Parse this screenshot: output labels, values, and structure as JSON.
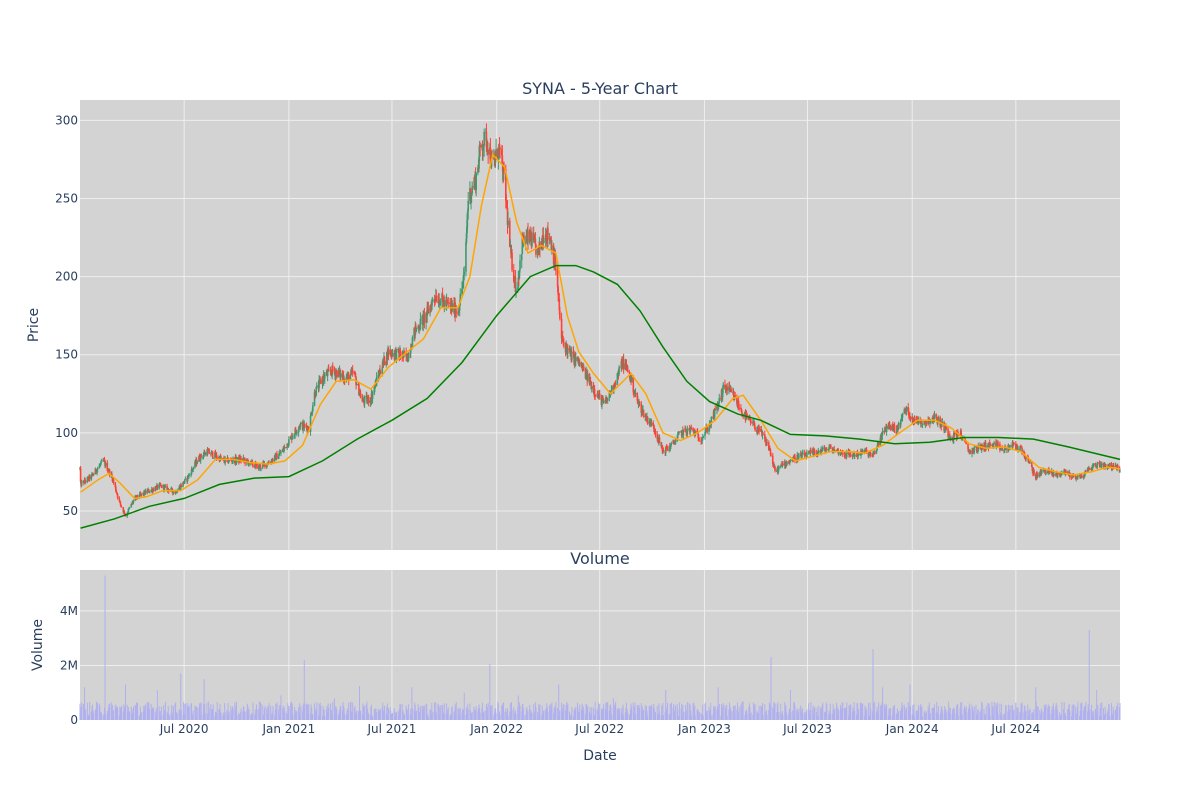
{
  "chart_data": [
    {
      "type": "candlestick",
      "title": "SYNA - 5-Year Chart",
      "ylabel": "Price",
      "ylim": [
        25,
        313
      ],
      "yticks": [
        50,
        100,
        150,
        200,
        250,
        300
      ],
      "x_range": [
        "2019-12-31",
        "2024-12-31"
      ],
      "background": "#d3d3d3",
      "colors": {
        "increasing": "#3d9970",
        "decreasing": "#ff4136",
        "ma_short": "#ffa500",
        "ma_long": "#008000"
      },
      "price_path": [
        [
          "2020-01-01",
          67
        ],
        [
          "2020-01-20",
          72
        ],
        [
          "2020-02-10",
          82
        ],
        [
          "2020-02-25",
          72
        ],
        [
          "2020-03-10",
          55
        ],
        [
          "2020-03-20",
          47
        ],
        [
          "2020-04-05",
          58
        ],
        [
          "2020-04-25",
          62
        ],
        [
          "2020-05-20",
          66
        ],
        [
          "2020-06-15",
          62
        ],
        [
          "2020-07-05",
          70
        ],
        [
          "2020-07-25",
          83
        ],
        [
          "2020-08-10",
          88
        ],
        [
          "2020-09-10",
          82
        ],
        [
          "2020-10-10",
          83
        ],
        [
          "2020-11-10",
          78
        ],
        [
          "2020-12-01",
          82
        ],
        [
          "2020-12-20",
          88
        ],
        [
          "2021-01-05",
          97
        ],
        [
          "2021-01-20",
          105
        ],
        [
          "2021-02-05",
          103
        ],
        [
          "2021-02-15",
          125
        ],
        [
          "2021-03-01",
          135
        ],
        [
          "2021-03-20",
          140
        ],
        [
          "2021-04-10",
          135
        ],
        [
          "2021-04-25",
          138
        ],
        [
          "2021-05-10",
          120
        ],
        [
          "2021-05-25",
          122
        ],
        [
          "2021-06-10",
          140
        ],
        [
          "2021-06-25",
          152
        ],
        [
          "2021-07-15",
          150
        ],
        [
          "2021-07-28",
          148
        ],
        [
          "2021-08-10",
          165
        ],
        [
          "2021-08-30",
          175
        ],
        [
          "2021-09-15",
          188
        ],
        [
          "2021-10-05",
          182
        ],
        [
          "2021-10-25",
          178
        ],
        [
          "2021-11-05",
          200
        ],
        [
          "2021-11-12",
          250
        ],
        [
          "2021-11-25",
          262
        ],
        [
          "2021-12-05",
          285
        ],
        [
          "2021-12-15",
          288
        ],
        [
          "2021-12-25",
          270
        ],
        [
          "2022-01-05",
          282
        ],
        [
          "2022-01-15",
          260
        ],
        [
          "2022-01-25",
          215
        ],
        [
          "2022-02-05",
          190
        ],
        [
          "2022-02-15",
          222
        ],
        [
          "2022-03-01",
          225
        ],
        [
          "2022-03-15",
          215
        ],
        [
          "2022-03-25",
          228
        ],
        [
          "2022-04-05",
          225
        ],
        [
          "2022-04-15",
          205
        ],
        [
          "2022-04-25",
          160
        ],
        [
          "2022-05-10",
          150
        ],
        [
          "2022-05-25",
          145
        ],
        [
          "2022-06-10",
          135
        ],
        [
          "2022-06-25",
          125
        ],
        [
          "2022-07-10",
          118
        ],
        [
          "2022-07-25",
          130
        ],
        [
          "2022-08-10",
          145
        ],
        [
          "2022-08-20",
          140
        ],
        [
          "2022-09-05",
          120
        ],
        [
          "2022-09-20",
          110
        ],
        [
          "2022-10-05",
          103
        ],
        [
          "2022-10-20",
          88
        ],
        [
          "2022-11-05",
          92
        ],
        [
          "2022-11-20",
          100
        ],
        [
          "2022-12-10",
          102
        ],
        [
          "2022-12-25",
          96
        ],
        [
          "2023-01-10",
          105
        ],
        [
          "2023-01-25",
          118
        ],
        [
          "2023-02-05",
          130
        ],
        [
          "2023-02-20",
          124
        ],
        [
          "2023-03-10",
          112
        ],
        [
          "2023-03-25",
          106
        ],
        [
          "2023-04-10",
          100
        ],
        [
          "2023-04-25",
          90
        ],
        [
          "2023-05-05",
          75
        ],
        [
          "2023-05-20",
          80
        ],
        [
          "2023-06-10",
          84
        ],
        [
          "2023-06-30",
          86
        ],
        [
          "2023-07-20",
          88
        ],
        [
          "2023-08-10",
          90
        ],
        [
          "2023-08-25",
          88
        ],
        [
          "2023-09-10",
          86
        ],
        [
          "2023-09-25",
          86
        ],
        [
          "2023-10-10",
          88
        ],
        [
          "2023-10-25",
          85
        ],
        [
          "2023-11-05",
          96
        ],
        [
          "2023-11-20",
          105
        ],
        [
          "2023-12-05",
          102
        ],
        [
          "2023-12-20",
          115
        ],
        [
          "2024-01-05",
          108
        ],
        [
          "2024-01-25",
          107
        ],
        [
          "2024-02-10",
          110
        ],
        [
          "2024-02-25",
          104
        ],
        [
          "2024-03-10",
          97
        ],
        [
          "2024-03-25",
          100
        ],
        [
          "2024-04-10",
          88
        ],
        [
          "2024-04-25",
          90
        ],
        [
          "2024-05-10",
          92
        ],
        [
          "2024-05-25",
          92
        ],
        [
          "2024-06-10",
          89
        ],
        [
          "2024-06-25",
          92
        ],
        [
          "2024-07-10",
          90
        ],
        [
          "2024-07-25",
          80
        ],
        [
          "2024-08-05",
          72
        ],
        [
          "2024-08-20",
          76
        ],
        [
          "2024-09-10",
          73
        ],
        [
          "2024-09-25",
          75
        ],
        [
          "2024-10-10",
          72
        ],
        [
          "2024-10-25",
          72
        ],
        [
          "2024-11-10",
          78
        ],
        [
          "2024-11-25",
          80
        ],
        [
          "2024-12-10",
          79
        ],
        [
          "2024-12-31",
          77
        ]
      ],
      "ma_short": [
        [
          "2020-01-01",
          62
        ],
        [
          "2020-02-01",
          70
        ],
        [
          "2020-02-20",
          74
        ],
        [
          "2020-03-10",
          68
        ],
        [
          "2020-04-05",
          58
        ],
        [
          "2020-04-25",
          59
        ],
        [
          "2020-05-25",
          63
        ],
        [
          "2020-06-25",
          63
        ],
        [
          "2020-07-25",
          70
        ],
        [
          "2020-08-25",
          83
        ],
        [
          "2020-09-25",
          83
        ],
        [
          "2020-10-25",
          81
        ],
        [
          "2020-11-25",
          80
        ],
        [
          "2020-12-25",
          82
        ],
        [
          "2021-01-25",
          92
        ],
        [
          "2021-02-25",
          118
        ],
        [
          "2021-03-25",
          133
        ],
        [
          "2021-04-25",
          134
        ],
        [
          "2021-05-25",
          128
        ],
        [
          "2021-06-25",
          142
        ],
        [
          "2021-07-25",
          151
        ],
        [
          "2021-08-25",
          160
        ],
        [
          "2021-09-25",
          180
        ],
        [
          "2021-10-25",
          180
        ],
        [
          "2021-11-15",
          200
        ],
        [
          "2021-12-05",
          245
        ],
        [
          "2021-12-25",
          278
        ],
        [
          "2022-01-15",
          270
        ],
        [
          "2022-02-05",
          235
        ],
        [
          "2022-02-25",
          215
        ],
        [
          "2022-03-20",
          220
        ],
        [
          "2022-04-15",
          215
        ],
        [
          "2022-05-05",
          175
        ],
        [
          "2022-05-25",
          152
        ],
        [
          "2022-06-20",
          138
        ],
        [
          "2022-07-20",
          125
        ],
        [
          "2022-08-25",
          138
        ],
        [
          "2022-09-20",
          125
        ],
        [
          "2022-10-20",
          100
        ],
        [
          "2022-11-20",
          95
        ],
        [
          "2022-12-20",
          100
        ],
        [
          "2023-01-20",
          108
        ],
        [
          "2023-02-20",
          122
        ],
        [
          "2023-03-10",
          124
        ],
        [
          "2023-04-10",
          108
        ],
        [
          "2023-05-10",
          90
        ],
        [
          "2023-06-10",
          82
        ],
        [
          "2023-07-10",
          85
        ],
        [
          "2023-08-10",
          88
        ],
        [
          "2023-09-10",
          88
        ],
        [
          "2023-10-10",
          87
        ],
        [
          "2023-11-10",
          92
        ],
        [
          "2023-12-10",
          100
        ],
        [
          "2024-01-10",
          108
        ],
        [
          "2024-02-10",
          108
        ],
        [
          "2024-03-10",
          103
        ],
        [
          "2024-04-10",
          93
        ],
        [
          "2024-05-10",
          90
        ],
        [
          "2024-06-10",
          91
        ],
        [
          "2024-07-10",
          88
        ],
        [
          "2024-08-10",
          78
        ],
        [
          "2024-09-10",
          75
        ],
        [
          "2024-10-10",
          73
        ],
        [
          "2024-11-10",
          75
        ],
        [
          "2024-12-10",
          78
        ],
        [
          "2024-12-31",
          77
        ]
      ],
      "ma_long": [
        [
          "2020-01-01",
          39
        ],
        [
          "2020-03-01",
          45
        ],
        [
          "2020-05-01",
          53
        ],
        [
          "2020-07-01",
          58
        ],
        [
          "2020-09-01",
          67
        ],
        [
          "2020-11-01",
          71
        ],
        [
          "2021-01-01",
          72
        ],
        [
          "2021-03-01",
          82
        ],
        [
          "2021-05-01",
          96
        ],
        [
          "2021-07-01",
          108
        ],
        [
          "2021-09-01",
          122
        ],
        [
          "2021-11-01",
          145
        ],
        [
          "2022-01-01",
          175
        ],
        [
          "2022-03-01",
          200
        ],
        [
          "2022-04-15",
          207
        ],
        [
          "2022-05-20",
          207
        ],
        [
          "2022-06-20",
          203
        ],
        [
          "2022-08-01",
          195
        ],
        [
          "2022-09-10",
          178
        ],
        [
          "2022-10-20",
          155
        ],
        [
          "2022-12-01",
          133
        ],
        [
          "2023-01-10",
          120
        ],
        [
          "2023-03-01",
          112
        ],
        [
          "2023-04-10",
          108
        ],
        [
          "2023-06-01",
          99
        ],
        [
          "2023-08-01",
          98
        ],
        [
          "2023-10-01",
          96
        ],
        [
          "2023-12-01",
          93
        ],
        [
          "2024-02-01",
          94
        ],
        [
          "2024-04-01",
          97
        ],
        [
          "2024-06-01",
          97
        ],
        [
          "2024-08-01",
          96
        ],
        [
          "2024-10-01",
          91
        ],
        [
          "2024-12-31",
          83
        ]
      ]
    },
    {
      "type": "bar",
      "title": "Volume",
      "xlabel": "Date",
      "ylabel": "Volume",
      "ylim": [
        0,
        5500000
      ],
      "yticks": [
        0,
        2000000,
        4000000
      ],
      "ytick_labels": [
        "0",
        "2M",
        "4M"
      ],
      "xticks": [
        "2020-07-01",
        "2021-01-01",
        "2021-07-01",
        "2022-01-01",
        "2022-07-01",
        "2023-01-01",
        "2023-07-01",
        "2024-01-01",
        "2024-07-01"
      ],
      "xtick_labels": [
        "Jul 2020",
        "Jan 2021",
        "Jul 2021",
        "Jan 2022",
        "Jul 2022",
        "Jan 2023",
        "Jul 2023",
        "Jan 2024",
        "Jul 2024"
      ],
      "bar_color": "#b0b0f0",
      "typical_volume": 450000,
      "spikes": [
        [
          "2020-01-08",
          1200000
        ],
        [
          "2020-02-13",
          5300000
        ],
        [
          "2020-03-20",
          1300000
        ],
        [
          "2020-05-15",
          1100000
        ],
        [
          "2020-06-25",
          1700000
        ],
        [
          "2020-08-05",
          1500000
        ],
        [
          "2020-12-18",
          900000
        ],
        [
          "2021-01-28",
          2200000
        ],
        [
          "2021-03-22",
          800000
        ],
        [
          "2021-05-05",
          1250000
        ],
        [
          "2021-08-05",
          1200000
        ],
        [
          "2021-11-05",
          1000000
        ],
        [
          "2021-12-20",
          2050000
        ],
        [
          "2022-02-08",
          900000
        ],
        [
          "2022-04-20",
          1300000
        ],
        [
          "2022-05-15",
          1100000
        ],
        [
          "2022-07-25",
          800000
        ],
        [
          "2022-10-25",
          1100000
        ],
        [
          "2022-11-20",
          1100000
        ],
        [
          "2023-01-25",
          1200000
        ],
        [
          "2023-04-28",
          2300000
        ],
        [
          "2023-06-01",
          1100000
        ],
        [
          "2023-10-24",
          2600000
        ],
        [
          "2023-11-10",
          1200000
        ],
        [
          "2023-12-28",
          1300000
        ],
        [
          "2024-08-05",
          1200000
        ],
        [
          "2024-11-07",
          3300000
        ],
        [
          "2024-11-20",
          1100000
        ]
      ]
    }
  ]
}
